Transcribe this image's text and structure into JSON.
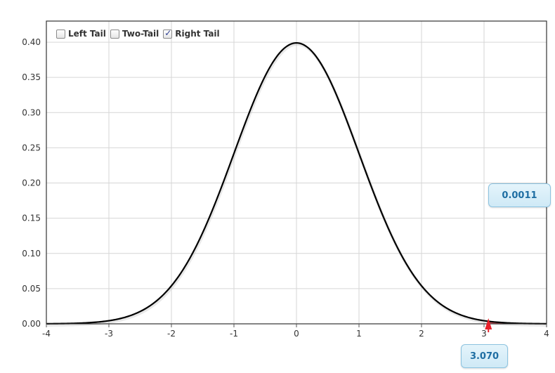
{
  "chart_data": {
    "type": "line",
    "series": [
      {
        "x": [
          -4.0,
          -3.5,
          -3.0,
          -2.5,
          -2.0,
          -1.5,
          -1.0,
          -0.5,
          0.0,
          0.5,
          1.0,
          1.5,
          2.0,
          2.5,
          3.0,
          3.5,
          4.0
        ],
        "values": [
          0.0001,
          0.0009,
          0.0044,
          0.0175,
          0.054,
          0.1295,
          0.242,
          0.3521,
          0.3989,
          0.3521,
          0.242,
          0.1295,
          0.054,
          0.0175,
          0.0044,
          0.0009,
          0.0001
        ]
      }
    ],
    "xlim": [
      -4,
      4
    ],
    "ylim": [
      0,
      0.43
    ],
    "x_ticks": [
      "-4",
      "-3",
      "-2",
      "-1",
      "0",
      "1",
      "2",
      "3",
      "4"
    ],
    "y_ticks": [
      "0.00",
      "0.05",
      "0.10",
      "0.15",
      "0.20",
      "0.25",
      "0.30",
      "0.35",
      "0.40"
    ],
    "grid": true,
    "shaded_tail": "right",
    "critical_value": 3.07,
    "critical_label": "3.070",
    "tail_area_label": "0.0011",
    "colors": {
      "curve": "#000000",
      "tail": "#e8202a",
      "grid": "#d6d6d6",
      "callout_text": "#1f6ea3"
    }
  },
  "legend": {
    "options": [
      {
        "label": "Left Tail",
        "checked": false
      },
      {
        "label": "Two-Tail",
        "checked": false
      },
      {
        "label": "Right Tail",
        "checked": true
      }
    ]
  }
}
